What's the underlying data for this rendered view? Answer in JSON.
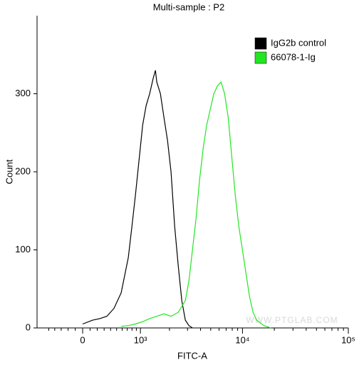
{
  "chart_data": {
    "type": "line",
    "title": "Multi-sample : P2",
    "x_label": "FITC-A",
    "y_label": "Count",
    "xscale": "biexponential",
    "xlim": [
      -721,
      100000
    ],
    "ylim": [
      0,
      400
    ],
    "xticks": [
      0,
      {
        "value": 1000,
        "label": "10³"
      },
      {
        "value": 10000,
        "label": "10⁴"
      },
      {
        "value": 100000,
        "label": "10⁵"
      }
    ],
    "xminor_ticks": [
      -500,
      -400,
      -300,
      -200,
      -100,
      100,
      200,
      300,
      400,
      500,
      600,
      700,
      800,
      900,
      2000,
      3000,
      4000,
      5000,
      6000,
      7000,
      8000,
      9000,
      20000,
      30000,
      40000,
      50000,
      60000,
      70000,
      80000,
      90000
    ],
    "yticks": [
      0,
      100,
      200,
      300
    ],
    "legend": "top-right",
    "watermark": "WWW.PTGLAB.COM",
    "series": [
      {
        "name": "IgG2b control",
        "color": "#000000",
        "x": [
          0,
          136,
          236,
          342,
          456,
          582,
          721,
          798,
          878,
          965,
          1059,
          1155,
          1259,
          1371,
          1445,
          1491,
          1624,
          1761,
          1913,
          2071,
          2249,
          2437,
          2641,
          2858,
          3094,
          3348
        ],
        "values": [
          5,
          10,
          12,
          15,
          25,
          45,
          90,
          130,
          170,
          215,
          260,
          285,
          300,
          320,
          330,
          315,
          300,
          270,
          240,
          200,
          130,
          80,
          35,
          10,
          3,
          0
        ]
      },
      {
        "name": "66078-1-Ig",
        "color": "#22e622",
        "x": [
          582,
          721,
          878,
          1059,
          1259,
          1491,
          1761,
          2071,
          2437,
          2858,
          3094,
          3348,
          3621,
          3916,
          4235,
          4579,
          4951,
          5354,
          5787,
          6261,
          6768,
          7317,
          7910,
          8550,
          9238,
          9982,
          10788,
          11656,
          12605,
          13621,
          15909,
          18575
        ],
        "values": [
          2,
          3,
          5,
          8,
          12,
          15,
          18,
          15,
          20,
          35,
          60,
          100,
          140,
          190,
          230,
          260,
          280,
          300,
          310,
          315,
          300,
          270,
          220,
          170,
          130,
          100,
          70,
          40,
          20,
          10,
          3,
          0
        ]
      }
    ]
  }
}
